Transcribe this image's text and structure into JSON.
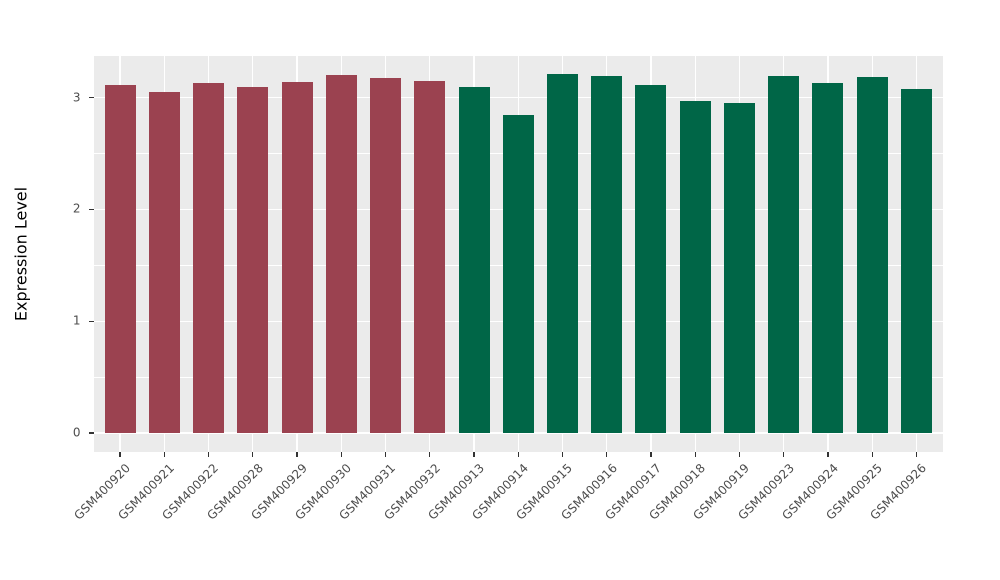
{
  "chart_data": {
    "type": "bar",
    "title": "",
    "xlabel": "",
    "ylabel": "Expression Level",
    "ylim": [
      0,
      3.37
    ],
    "yticks": [
      0,
      1,
      2,
      3
    ],
    "yticks_minor": [
      0.5,
      1.5,
      2.5
    ],
    "grid": "on",
    "legend_position": "none",
    "categories": [
      "GSM400920",
      "GSM400921",
      "GSM400922",
      "GSM400928",
      "GSM400929",
      "GSM400930",
      "GSM400931",
      "GSM400932",
      "GSM400913",
      "GSM400914",
      "GSM400915",
      "GSM400916",
      "GSM400917",
      "GSM400918",
      "GSM400919",
      "GSM400923",
      "GSM400924",
      "GSM400925",
      "GSM400926"
    ],
    "values": [
      3.11,
      3.05,
      3.13,
      3.09,
      3.14,
      3.2,
      3.17,
      3.15,
      3.09,
      2.84,
      3.21,
      3.19,
      3.11,
      2.97,
      2.95,
      3.19,
      3.13,
      3.18,
      3.08
    ],
    "groups": [
      "A",
      "A",
      "A",
      "A",
      "A",
      "A",
      "A",
      "A",
      "B",
      "B",
      "B",
      "B",
      "B",
      "B",
      "B",
      "B",
      "B",
      "B",
      "B"
    ],
    "colors": {
      "A": "#9B4250",
      "B": "#006647",
      "panel_background": "#EBEBEB",
      "grid_major": "#FFFFFF",
      "grid_minor": "#FFFFFF",
      "tick_text": "#4D4D4D",
      "axis_title": "#000000",
      "tick_mark": "#333333",
      "figure_background": "#FFFFFF"
    }
  }
}
